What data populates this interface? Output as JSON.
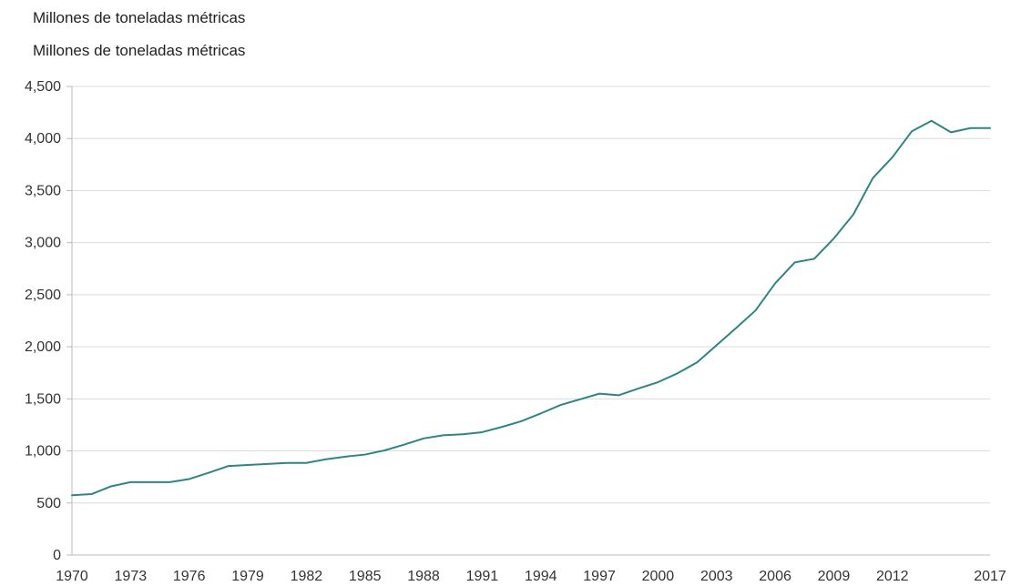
{
  "header": {
    "title": "Millones de toneladas métricas",
    "subtitle": "Millones de toneladas métricas"
  },
  "colors": {
    "line": "#2e8582",
    "grid": "#dcdcdc",
    "axis": "#bbbbbb",
    "text": "#333333"
  },
  "chart_data": {
    "type": "line",
    "title": "Millones de toneladas métricas",
    "subtitle": "Millones de toneladas métricas",
    "xlabel": "",
    "ylabel": "",
    "xlim": [
      1970,
      2017
    ],
    "ylim": [
      0,
      4500
    ],
    "grid": true,
    "legend": "none",
    "y_ticks": [
      0,
      500,
      1000,
      1500,
      2000,
      2500,
      3000,
      3500,
      4000,
      4500
    ],
    "y_tick_labels": [
      "0",
      "500",
      "1,000",
      "1,500",
      "2,000",
      "2,500",
      "3,000",
      "3,500",
      "4,000",
      "4,500"
    ],
    "x_ticks": [
      1970,
      1973,
      1976,
      1979,
      1982,
      1985,
      1988,
      1991,
      1994,
      1997,
      2000,
      2003,
      2006,
      2009,
      2012,
      2017
    ],
    "x_tick_labels": [
      "1970",
      "1973",
      "1976",
      "1979",
      "1982",
      "1985",
      "1988",
      "1991",
      "1994",
      "1997",
      "2000",
      "2003",
      "2006",
      "2009",
      "2012",
      "2017"
    ],
    "x": [
      1970,
      1971,
      1972,
      1973,
      1974,
      1975,
      1976,
      1977,
      1978,
      1979,
      1980,
      1981,
      1982,
      1983,
      1984,
      1985,
      1986,
      1987,
      1988,
      1989,
      1990,
      1991,
      1992,
      1993,
      1994,
      1995,
      1996,
      1997,
      1998,
      1999,
      2000,
      2001,
      2002,
      2003,
      2004,
      2005,
      2006,
      2007,
      2008,
      2009,
      2010,
      2011,
      2012,
      2013,
      2014,
      2015,
      2016,
      2017
    ],
    "series": [
      {
        "values": [
          575,
          585,
          660,
          700,
          700,
          700,
          730,
          790,
          855,
          865,
          875,
          885,
          885,
          920,
          945,
          965,
          1005,
          1060,
          1120,
          1150,
          1160,
          1180,
          1230,
          1285,
          1360,
          1440,
          1495,
          1550,
          1535,
          1600,
          1660,
          1745,
          1850,
          2015,
          2180,
          2350,
          2610,
          2810,
          2845,
          3040,
          3270,
          3620,
          3820,
          4070,
          4170,
          4060,
          4100,
          4100
        ]
      }
    ]
  }
}
